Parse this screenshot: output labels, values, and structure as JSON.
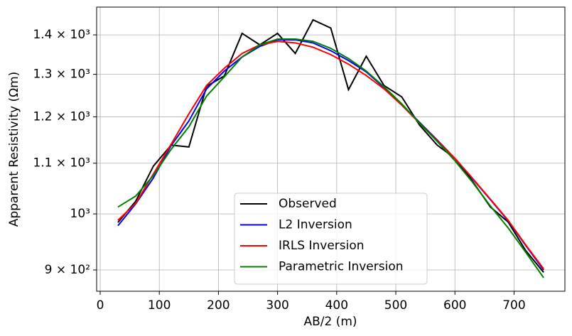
{
  "chart_data": {
    "type": "line",
    "xlabel": "AB/2 (m)",
    "ylabel": "Apparent Resistivity (Ωm)",
    "x": [
      30,
      60,
      90,
      120,
      150,
      180,
      210,
      240,
      270,
      300,
      330,
      360,
      390,
      420,
      450,
      480,
      510,
      540,
      570,
      600,
      630,
      660,
      690,
      720,
      750
    ],
    "series": [
      {
        "name": "Observed",
        "color": "#000000",
        "values": [
          984,
          1024,
          1094,
          1138,
          1134,
          1271,
          1296,
          1404,
          1374,
          1404,
          1352,
          1440,
          1418,
          1263,
          1345,
          1273,
          1246,
          1182,
          1138,
          1110,
          1063,
          1013,
          985,
          933,
          896
        ]
      },
      {
        "name": "L2 Inversion",
        "color": "#0000ff",
        "values": [
          978,
          1019,
          1070,
          1137,
          1191,
          1265,
          1308,
          1343,
          1370,
          1387,
          1387,
          1379,
          1359,
          1334,
          1306,
          1268,
          1228,
          1188,
          1149,
          1110,
          1068,
          1027,
          987,
          942,
          900
        ]
      },
      {
        "name": "IRLS Inversion",
        "color": "#ff0000",
        "values": [
          988,
          1020,
          1078,
          1140,
          1207,
          1273,
          1315,
          1352,
          1374,
          1383,
          1379,
          1368,
          1349,
          1325,
          1297,
          1265,
          1227,
          1186,
          1147,
          1110,
          1069,
          1028,
          988,
          943,
          902
        ]
      },
      {
        "name": "Parametric Inversion",
        "color": "#008000",
        "values": [
          1013,
          1034,
          1075,
          1129,
          1178,
          1248,
          1294,
          1343,
          1374,
          1389,
          1389,
          1383,
          1365,
          1339,
          1308,
          1270,
          1230,
          1186,
          1146,
          1105,
          1061,
          1015,
          974,
          930,
          887
        ]
      }
    ],
    "xlim": [
      -6,
      786
    ],
    "xticks": [
      0,
      100,
      200,
      300,
      400,
      500,
      600,
      700
    ],
    "ylim": [
      864.7,
      1475
    ],
    "yticks": [
      {
        "value": 900,
        "label": "9 × 10²"
      },
      {
        "value": 1000,
        "label": "10³"
      },
      {
        "value": 1100,
        "label": "1.1 × 10³"
      },
      {
        "value": 1200,
        "label": "1.2 × 10³"
      },
      {
        "value": 1300,
        "label": "1.3 × 10³"
      },
      {
        "value": 1400,
        "label": "1.4 × 10³"
      }
    ],
    "log_y": true,
    "grid": true,
    "legend": "lower center"
  }
}
